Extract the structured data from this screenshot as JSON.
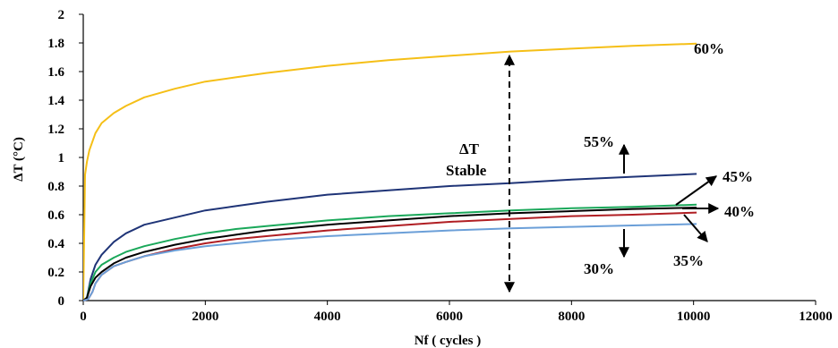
{
  "chart_data": {
    "type": "line",
    "title": "",
    "xlabel": "Nf ( cycles )",
    "ylabel": "ΔT (°C)",
    "xlim": [
      0,
      12000
    ],
    "ylim": [
      0,
      2
    ],
    "x_ticks": [
      "0",
      "2000",
      "4000",
      "6000",
      "8000",
      "10000",
      "12000"
    ],
    "y_ticks": [
      "0",
      "0.2",
      "0.4",
      "0.6",
      "0.8",
      "1",
      "1.2",
      "1.4",
      "1.6",
      "1.8",
      "2"
    ],
    "grid": false,
    "legend": "none",
    "series": [
      {
        "key": "s60",
        "color": "#f5bf17",
        "x": [
          0,
          30,
          60,
          100,
          200,
          300,
          500,
          700,
          1000,
          1500,
          2000,
          2500,
          3000,
          4000,
          5000,
          6000,
          7000,
          8000,
          9000,
          10050
        ],
        "y": [
          0,
          0.88,
          0.97,
          1.05,
          1.17,
          1.24,
          1.31,
          1.36,
          1.42,
          1.48,
          1.53,
          1.56,
          1.59,
          1.64,
          1.68,
          1.71,
          1.74,
          1.76,
          1.78,
          1.795
        ]
      },
      {
        "key": "s55",
        "color": "#1f3477",
        "x": [
          0,
          60,
          120,
          200,
          300,
          500,
          700,
          1000,
          1500,
          2000,
          2500,
          3000,
          4000,
          5000,
          6000,
          7000,
          8000,
          9000,
          10050
        ],
        "y": [
          0,
          0.02,
          0.15,
          0.25,
          0.32,
          0.41,
          0.47,
          0.53,
          0.58,
          0.63,
          0.66,
          0.69,
          0.74,
          0.77,
          0.8,
          0.82,
          0.845,
          0.865,
          0.885
        ]
      },
      {
        "key": "s45",
        "color": "#1aa85a",
        "x": [
          0,
          60,
          120,
          200,
          300,
          500,
          700,
          1000,
          1500,
          2000,
          2500,
          3000,
          4000,
          5000,
          6000,
          7000,
          8000,
          9000,
          10050
        ],
        "y": [
          0,
          0.02,
          0.12,
          0.2,
          0.25,
          0.3,
          0.34,
          0.38,
          0.43,
          0.47,
          0.5,
          0.52,
          0.56,
          0.59,
          0.61,
          0.63,
          0.645,
          0.655,
          0.67
        ]
      },
      {
        "key": "s40",
        "color": "#000000",
        "x": [
          0,
          60,
          120,
          200,
          300,
          500,
          700,
          1000,
          1500,
          2000,
          2500,
          3000,
          4000,
          5000,
          6000,
          7000,
          8000,
          9000,
          10050
        ],
        "y": [
          0,
          0.02,
          0.1,
          0.16,
          0.2,
          0.26,
          0.3,
          0.34,
          0.39,
          0.43,
          0.46,
          0.49,
          0.53,
          0.56,
          0.59,
          0.61,
          0.625,
          0.64,
          0.65
        ]
      },
      {
        "key": "s35",
        "color": "#b01e23",
        "x": [
          0,
          80,
          150,
          200,
          300,
          500,
          700,
          1000,
          1500,
          2000,
          2500,
          3000,
          4000,
          5000,
          6000,
          7000,
          8000,
          9000,
          10050
        ],
        "y": [
          0,
          0.01,
          0.06,
          0.12,
          0.18,
          0.24,
          0.27,
          0.31,
          0.36,
          0.4,
          0.43,
          0.45,
          0.49,
          0.52,
          0.55,
          0.57,
          0.59,
          0.6,
          0.615
        ]
      },
      {
        "key": "s30",
        "color": "#6b9fd8",
        "x": [
          0,
          80,
          150,
          200,
          300,
          500,
          700,
          1000,
          1500,
          2000,
          2500,
          3000,
          4000,
          5000,
          6000,
          7000,
          8000,
          9000,
          10050
        ],
        "y": [
          0,
          0.01,
          0.06,
          0.12,
          0.18,
          0.24,
          0.27,
          0.31,
          0.35,
          0.38,
          0.4,
          0.42,
          0.45,
          0.47,
          0.49,
          0.505,
          0.515,
          0.525,
          0.535
        ]
      }
    ],
    "annotations": {
      "label_60": "60%",
      "label_55": "55%",
      "label_45": "45%",
      "label_40": "40%",
      "label_35": "35%",
      "label_30": "30%",
      "delta_line1": "ΔT",
      "delta_line2": "Stable"
    }
  }
}
